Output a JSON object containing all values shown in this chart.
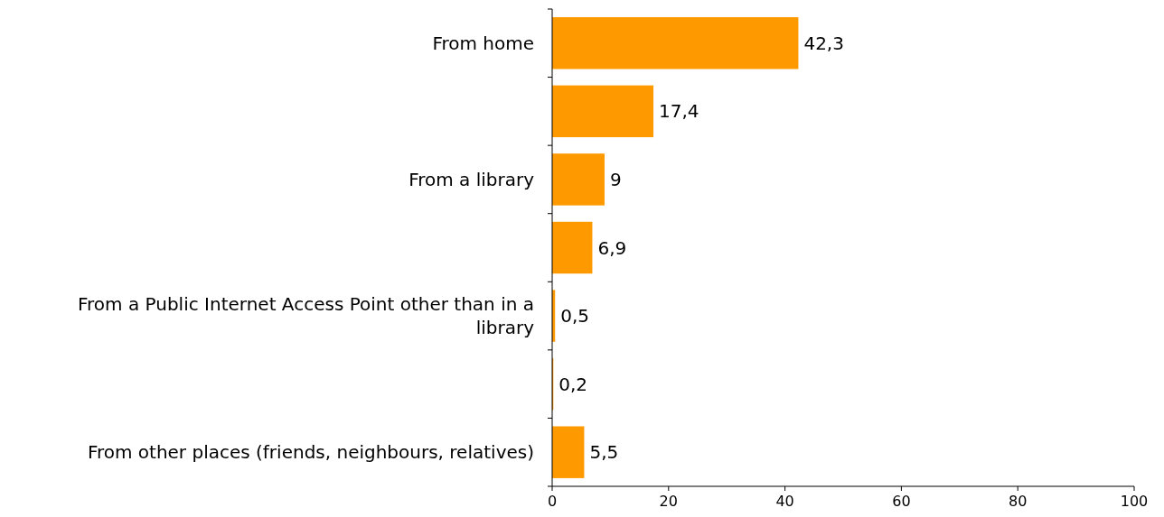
{
  "chart_data": {
    "type": "bar",
    "orientation": "horizontal",
    "categories": [
      "From home",
      null,
      "From a library",
      null,
      "From a Public Internet Access Point other than in a library",
      null,
      "From other places (friends, neighbours, relatives)"
    ],
    "values": [
      42.3,
      17.4,
      9,
      6.9,
      0.5,
      0.2,
      5.5
    ],
    "value_labels": [
      "42,3",
      "17,4",
      "9",
      "6,9",
      "0,5",
      "0,2",
      "5,5"
    ],
    "color": "#ff9900",
    "xlim": [
      0,
      100
    ],
    "xticks": [
      0,
      20,
      40,
      60,
      80,
      100
    ],
    "grid": false
  }
}
